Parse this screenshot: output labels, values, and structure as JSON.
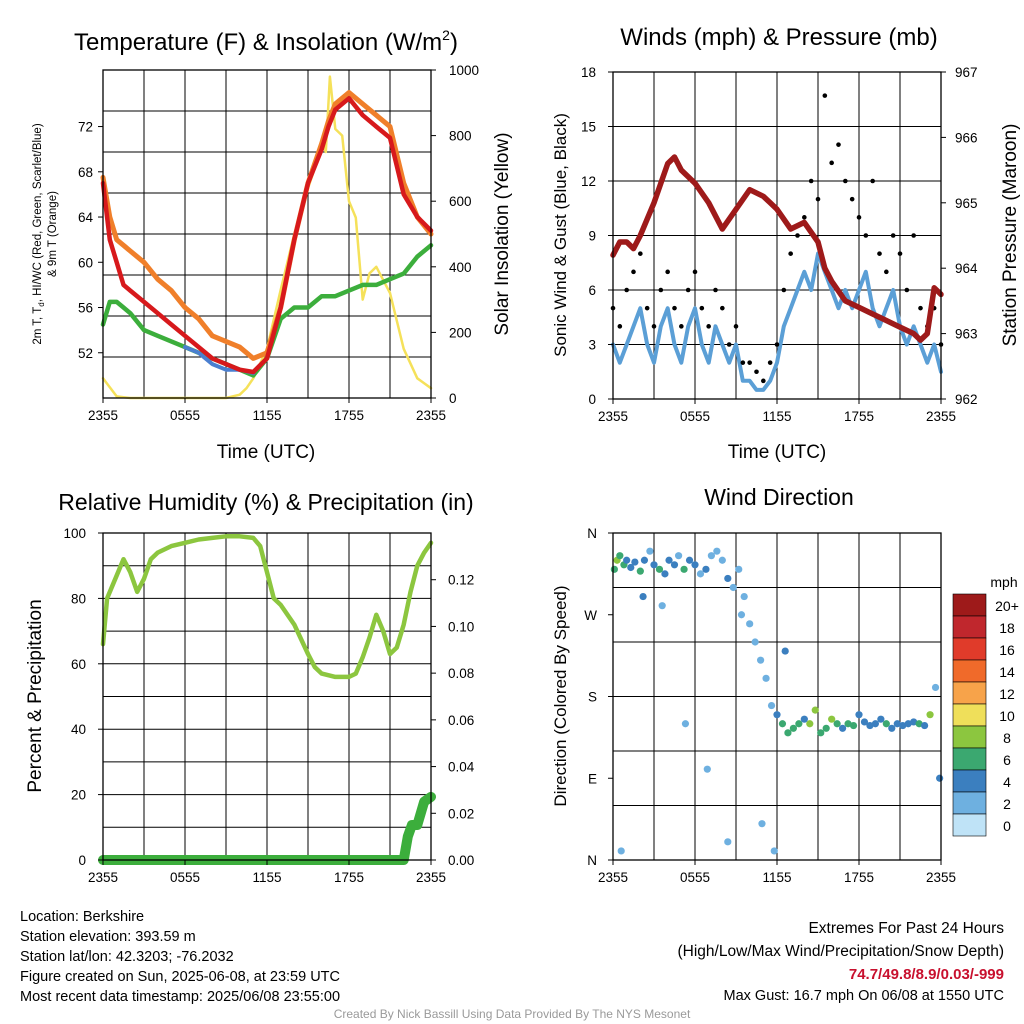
{
  "colors": {
    "t2m": "#d7191c",
    "dewpoint": "#3cae3c",
    "hiwc": "#4a7fd0",
    "t9m": "#f07f2a",
    "solar": "#f5e15a",
    "wind": "#5b9fd6",
    "gust": "#000000",
    "pressure": "#9e1a1a",
    "rh": "#8cc63f",
    "precip": "#3cae3c"
  },
  "time_ticks": [
    "2355",
    "0555",
    "1155",
    "1755",
    "2355"
  ],
  "charts": [
    {
      "id": "temperature",
      "type": "line",
      "title": "Temperature (F) & Insolation (W/m²)",
      "title_main": "Temperature (F) & Insolation (W/m",
      "title_sup": "2",
      "title_end": ")",
      "xlabel": "Time (UTC)",
      "ylabel_left": [
        "2m T, Td, HI/WC (Red, Green, Scarlet/Blue)",
        "& 9m T (Orange)"
      ],
      "ylabel_left_parts": [
        "2m T, T",
        "d",
        ", HI/WC (Red, Green, Scarlet/Blue)"
      ],
      "ylabel_left_line2": "& 9m T (Orange)",
      "ylabel_right": "Solar Insolation (Yellow)",
      "ylim": [
        48,
        77
      ],
      "ylim_right": [
        0,
        1000
      ],
      "yticks": [
        "52",
        "56",
        "60",
        "64",
        "68",
        "72"
      ],
      "yticks_right": [
        "0",
        "200",
        "400",
        "600",
        "800",
        "1000"
      ],
      "x_hours": [
        0,
        24
      ],
      "series": [
        {
          "name": "2m T (Red)",
          "color_key": "t2m",
          "x": [
            0,
            0.5,
            1,
            1.5,
            2,
            3,
            4,
            5,
            6,
            7,
            8,
            9,
            10,
            11,
            12,
            13,
            14,
            15,
            16,
            16.5,
            17,
            18,
            19,
            20,
            21,
            22,
            23,
            24
          ],
          "y": [
            67,
            62,
            60,
            58,
            57.5,
            56.5,
            55.5,
            54.5,
            53.5,
            52.5,
            51.5,
            51,
            50.5,
            50.3,
            51.5,
            56,
            62,
            67,
            70,
            72,
            73.5,
            74.5,
            73,
            72,
            71,
            66,
            64,
            62.8
          ]
        },
        {
          "name": "9m T (Orange)",
          "color_key": "t9m",
          "x": [
            0,
            0.5,
            1,
            1.5,
            2,
            3,
            4,
            5,
            6,
            7,
            8,
            9,
            10,
            11,
            12,
            13,
            14,
            15,
            16,
            16.5,
            17,
            18,
            19,
            20,
            21,
            22,
            23,
            24
          ],
          "y": [
            67.5,
            64,
            62,
            61.5,
            61,
            60,
            58.5,
            57.5,
            56,
            55,
            53.5,
            53,
            52.5,
            51.5,
            52,
            56,
            62,
            67,
            70.5,
            72.5,
            74,
            75,
            74,
            73,
            72,
            67,
            64,
            62.5
          ]
        },
        {
          "name": "Td (Green)",
          "color_key": "dewpoint",
          "x": [
            0,
            0.5,
            1,
            1.5,
            2,
            3,
            4,
            5,
            6,
            7,
            8,
            9,
            10,
            11,
            12,
            13,
            14,
            15,
            16,
            17,
            18,
            19,
            20,
            21,
            22,
            23,
            24
          ],
          "y": [
            54.5,
            56.5,
            56.5,
            56,
            55.5,
            54,
            53.5,
            53,
            52.5,
            52,
            51.5,
            51,
            50.5,
            50,
            51.5,
            55,
            56,
            56,
            57,
            57,
            57.5,
            58,
            58,
            58.5,
            59,
            60.5,
            61.5
          ]
        },
        {
          "name": "HI/WC (Blue)",
          "color_key": "hiwc",
          "x": [
            6,
            7,
            8,
            9,
            10,
            11
          ],
          "y": [
            52.5,
            52,
            51,
            50.5,
            50.5,
            50.2
          ]
        },
        {
          "name": "Solar Insolation (Yellow)",
          "color_key": "solar",
          "axis": "right",
          "x": [
            0,
            1,
            2,
            3,
            4,
            5,
            6,
            7,
            8,
            9,
            10,
            10.5,
            11,
            12,
            13,
            14,
            14.5,
            15,
            15.5,
            16,
            16.3,
            16.6,
            17,
            17.5,
            18,
            18.5,
            19,
            19.5,
            20,
            21,
            22,
            23,
            24
          ],
          "y": [
            60,
            5,
            0,
            0,
            0,
            0,
            0,
            0,
            0,
            0,
            10,
            30,
            60,
            150,
            330,
            500,
            560,
            640,
            700,
            780,
            750,
            980,
            820,
            800,
            600,
            550,
            300,
            380,
            400,
            320,
            150,
            60,
            30
          ]
        }
      ]
    },
    {
      "id": "winds",
      "type": "line",
      "title": "Winds (mph) & Pressure (mb)",
      "xlabel": "Time (UTC)",
      "ylabel_left": "Sonic Wind & Gust (Blue, Black)",
      "ylabel_right": "Station Pressure (Maroon)",
      "ylim": [
        0,
        18
      ],
      "ylim_right": [
        962,
        967
      ],
      "yticks": [
        "0",
        "3",
        "6",
        "9",
        "12",
        "15",
        "18"
      ],
      "yticks_right": [
        "962",
        "963",
        "964",
        "965",
        "966",
        "967"
      ],
      "series": [
        {
          "name": "Sonic Wind (Blue)",
          "color_key": "wind",
          "x": [
            0,
            0.5,
            1,
            1.5,
            2,
            2.5,
            3,
            3.5,
            4,
            4.5,
            5,
            5.5,
            6,
            6.5,
            7,
            7.5,
            8,
            8.5,
            9,
            9.5,
            10,
            10.5,
            11,
            11.5,
            12,
            12.5,
            13,
            13.5,
            14,
            14.5,
            15,
            15.5,
            16,
            16.5,
            17,
            17.5,
            18,
            18.5,
            19,
            19.5,
            20,
            20.5,
            21,
            21.5,
            22,
            22.5,
            23,
            23.5,
            24
          ],
          "y": [
            3,
            2,
            3,
            4,
            5,
            3,
            2,
            4,
            5,
            3,
            2,
            4,
            5,
            3,
            2,
            4,
            3,
            2,
            3,
            1,
            1,
            0.5,
            0.5,
            1,
            2,
            4,
            5,
            6,
            7,
            6,
            8,
            7,
            6,
            5,
            6,
            5,
            6,
            7,
            5,
            4,
            5,
            6,
            4,
            3,
            4,
            3,
            2,
            3,
            1.5
          ]
        },
        {
          "name": "Gust (Black)",
          "color_key": "gust",
          "x": [
            0,
            0.5,
            1,
            1.5,
            2,
            2.5,
            3,
            3.5,
            4,
            4.5,
            5,
            5.5,
            6,
            6.5,
            7,
            7.5,
            8,
            8.5,
            9,
            9.5,
            10,
            10.5,
            11,
            11.5,
            12,
            12.5,
            13,
            13.5,
            14,
            14.5,
            15,
            15.5,
            16,
            16.5,
            17,
            17.5,
            18,
            18.5,
            19,
            19.5,
            20,
            20.5,
            21,
            21.5,
            22,
            22.5,
            23,
            23.5,
            24
          ],
          "y": [
            5,
            4,
            6,
            7,
            8,
            5,
            4,
            6,
            7,
            5,
            4,
            6,
            7,
            5,
            4,
            6,
            5,
            3,
            4,
            2,
            2,
            1.5,
            1,
            2,
            3,
            6,
            8,
            9,
            10,
            12,
            11,
            16.7,
            13,
            14,
            12,
            11,
            10,
            9,
            12,
            8,
            7,
            9,
            8,
            6,
            9,
            5,
            4,
            5,
            3
          ]
        },
        {
          "name": "Station Pressure (Maroon)",
          "color_key": "pressure",
          "axis": "right",
          "x": [
            0,
            0.5,
            1,
            1.5,
            2,
            3,
            4,
            4.5,
            5,
            6,
            7,
            8,
            9,
            10,
            11,
            11.5,
            12,
            13,
            14,
            15,
            15.5,
            16,
            17,
            18,
            19,
            20,
            21,
            22,
            22.5,
            23,
            23.5,
            24
          ],
          "y": [
            964.2,
            964.4,
            964.4,
            964.3,
            964.5,
            965.0,
            965.6,
            965.7,
            965.5,
            965.3,
            965.0,
            964.6,
            964.9,
            965.2,
            965.1,
            965.0,
            964.9,
            964.6,
            964.7,
            964.4,
            964.0,
            963.8,
            963.5,
            963.4,
            963.3,
            963.2,
            963.1,
            963.0,
            962.9,
            963.0,
            963.7,
            963.6
          ]
        }
      ]
    },
    {
      "id": "humidity",
      "type": "line",
      "title": "Relative Humidity (%) & Precipitation (in)",
      "xlabel": "",
      "ylabel_left": "Percent & Precipitation",
      "ylabel_right": "",
      "ylim": [
        0,
        100
      ],
      "ylim_right": [
        0,
        0.14
      ],
      "yticks": [
        "0",
        "20",
        "40",
        "60",
        "80",
        "100"
      ],
      "yticks_right": [
        "0.00",
        "0.02",
        "0.04",
        "0.06",
        "0.08",
        "0.10",
        "0.12"
      ],
      "series": [
        {
          "name": "Relative Humidity",
          "color_key": "rh",
          "x": [
            0,
            0.3,
            1,
            1.5,
            2,
            2.5,
            3,
            3.5,
            4,
            4.5,
            5,
            6,
            7,
            8,
            9,
            10,
            11,
            11.5,
            12,
            12.5,
            13,
            14,
            15,
            15.5,
            16,
            17,
            18,
            18.5,
            19,
            19.5,
            20,
            20.5,
            21,
            21.5,
            22,
            22.5,
            23,
            23.5,
            24
          ],
          "y": [
            66,
            80,
            87,
            92,
            88,
            82,
            86,
            92,
            94,
            95,
            96,
            97,
            98,
            98.5,
            99,
            99,
            98.5,
            96,
            88,
            80,
            78,
            72,
            63,
            59,
            57,
            56,
            56,
            57,
            62,
            68,
            75,
            70,
            63,
            65,
            72,
            82,
            90,
            94,
            97
          ]
        },
        {
          "name": "Precipitation",
          "color_key": "precip",
          "axis": "right",
          "x": [
            0,
            22,
            22.3,
            22.6,
            23,
            23.5,
            24
          ],
          "y": [
            0,
            0,
            0.01,
            0.015,
            0.015,
            0.025,
            0.027
          ]
        }
      ]
    },
    {
      "id": "wind_direction",
      "type": "scatter",
      "title": "Wind Direction",
      "xlabel": "",
      "ylabel_left": "Direction (Colored By Speed)",
      "yticks": [
        "N",
        "E",
        "S",
        "W",
        "N"
      ],
      "ylim": [
        0,
        360
      ],
      "colorbar": {
        "title": "mph",
        "labels": [
          "20+",
          "18",
          "16",
          "14",
          "12",
          "10",
          "8",
          "6",
          "4",
          "2",
          "0"
        ],
        "colors": [
          "#9e1a1a",
          "#c0272d",
          "#e03b2a",
          "#f06a2a",
          "#f7a34a",
          "#efdf5a",
          "#8cc63f",
          "#3ba870",
          "#3b7fbf",
          "#6eb0e0",
          "#bfe3f7"
        ]
      },
      "series": [
        {
          "name": "Direction",
          "x": [
            0.1,
            0.3,
            0.5,
            0.8,
            1.0,
            1.3,
            1.6,
            2.0,
            2.3,
            2.7,
            3.0,
            3.4,
            3.8,
            4.1,
            4.5,
            4.8,
            5.2,
            5.6,
            6.0,
            6.4,
            6.8,
            7.2,
            7.6,
            8.0,
            8.4,
            8.8,
            9.2,
            9.6,
            10.0,
            10.4,
            10.8,
            11.2,
            11.6,
            12.0,
            12.4,
            12.8,
            13.2,
            13.6,
            14.0,
            14.4,
            14.8,
            15.2,
            15.6,
            16.0,
            16.4,
            16.8,
            17.2,
            17.6,
            18.0,
            18.4,
            18.8,
            19.2,
            19.6,
            20.0,
            20.4,
            20.8,
            21.2,
            21.6,
            22.0,
            22.4,
            22.8,
            23.2,
            23.6,
            23.9,
            2.2,
            3.6,
            5.3,
            6.9,
            8.4,
            10.9,
            11.8,
            12.6,
            0.6,
            9.4
          ],
          "y": [
            320,
            330,
            335,
            325,
            330,
            322,
            328,
            318,
            330,
            340,
            325,
            320,
            315,
            330,
            325,
            335,
            320,
            330,
            325,
            315,
            320,
            335,
            340,
            330,
            310,
            300,
            320,
            290,
            260,
            240,
            220,
            200,
            170,
            160,
            150,
            140,
            145,
            150,
            155,
            150,
            165,
            140,
            145,
            155,
            150,
            145,
            150,
            148,
            160,
            152,
            148,
            150,
            155,
            150,
            145,
            150,
            148,
            150,
            152,
            150,
            148,
            160,
            190,
            90,
            290,
            280,
            150,
            100,
            20,
            40,
            10,
            230,
            10,
            270
          ],
          "v": [
            5,
            7,
            5,
            6,
            4,
            4,
            3,
            6,
            4,
            2,
            4,
            5,
            3,
            4,
            4,
            2,
            5,
            4,
            3,
            2,
            4,
            2,
            1,
            2,
            3,
            2,
            2,
            1,
            1,
            2,
            1,
            2,
            1,
            4,
            5,
            6,
            5,
            6,
            4,
            7,
            8,
            5,
            6,
            7,
            5,
            4,
            6,
            5,
            4,
            3,
            4,
            4,
            3,
            5,
            4,
            3,
            3,
            3,
            4,
            5,
            4,
            7,
            2,
            4,
            3,
            2,
            2,
            1,
            2,
            1,
            1,
            3,
            2,
            1
          ]
        }
      ]
    }
  ],
  "info": {
    "location": "Location: Berkshire",
    "elevation": "Station elevation: 393.59 m",
    "latlon": "Station lat/lon: 42.3203; -76.2032",
    "created": "Figure created on Sun, 2025-06-08, at 23:59 UTC",
    "recent": "Most recent data timestamp: 2025/06/08 23:55:00"
  },
  "extremes": {
    "title": "Extremes For Past 24 Hours",
    "subtitle": "(High/Low/Max Wind/Precipitation/Snow Depth)",
    "values": "74.7/49.8/8.9/0.03/-999",
    "gust": "Max Gust: 16.7 mph On 06/08 at 1550 UTC"
  },
  "credit": "Created By Nick Bassill Using Data Provided By The NYS Mesonet"
}
